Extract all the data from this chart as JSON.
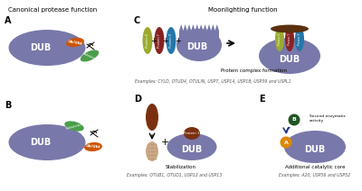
{
  "bg_color": "#ffffff",
  "title_canonical": "Canonical protease function",
  "title_moonlighting": "Moonlighting function",
  "dub_color": "#7878aa",
  "orange_color": "#cc5500",
  "green_color": "#4a9e4a",
  "olive_color": "#9aaa30",
  "dark_red_color": "#882222",
  "teal_color": "#2277aa",
  "brown_color": "#7a3010",
  "light_brown_color": "#ccaa88",
  "dark_brown_color": "#5a3010",
  "dark_green_color": "#225522",
  "navy_color": "#223388",
  "label_A": "A",
  "label_B": "B",
  "label_C": "C",
  "label_D": "D",
  "label_E": "E",
  "examples_C": "Examples: CYLD, OTUD4, OTULIN, USP7, USP14, USP18, USP39 and USPL1",
  "examples_D": "Examples: OTUB1, OTUD1, USP12 and USP13",
  "examples_E": "Examples: A20, USP36 and USP52",
  "protein_complex_label": "Protein complex formation",
  "stabilization_label": "Stabilization",
  "additional_catalytic_label": "Additional catalytic core",
  "second_enzymatic_label": "Second enzymatic\nactivity"
}
